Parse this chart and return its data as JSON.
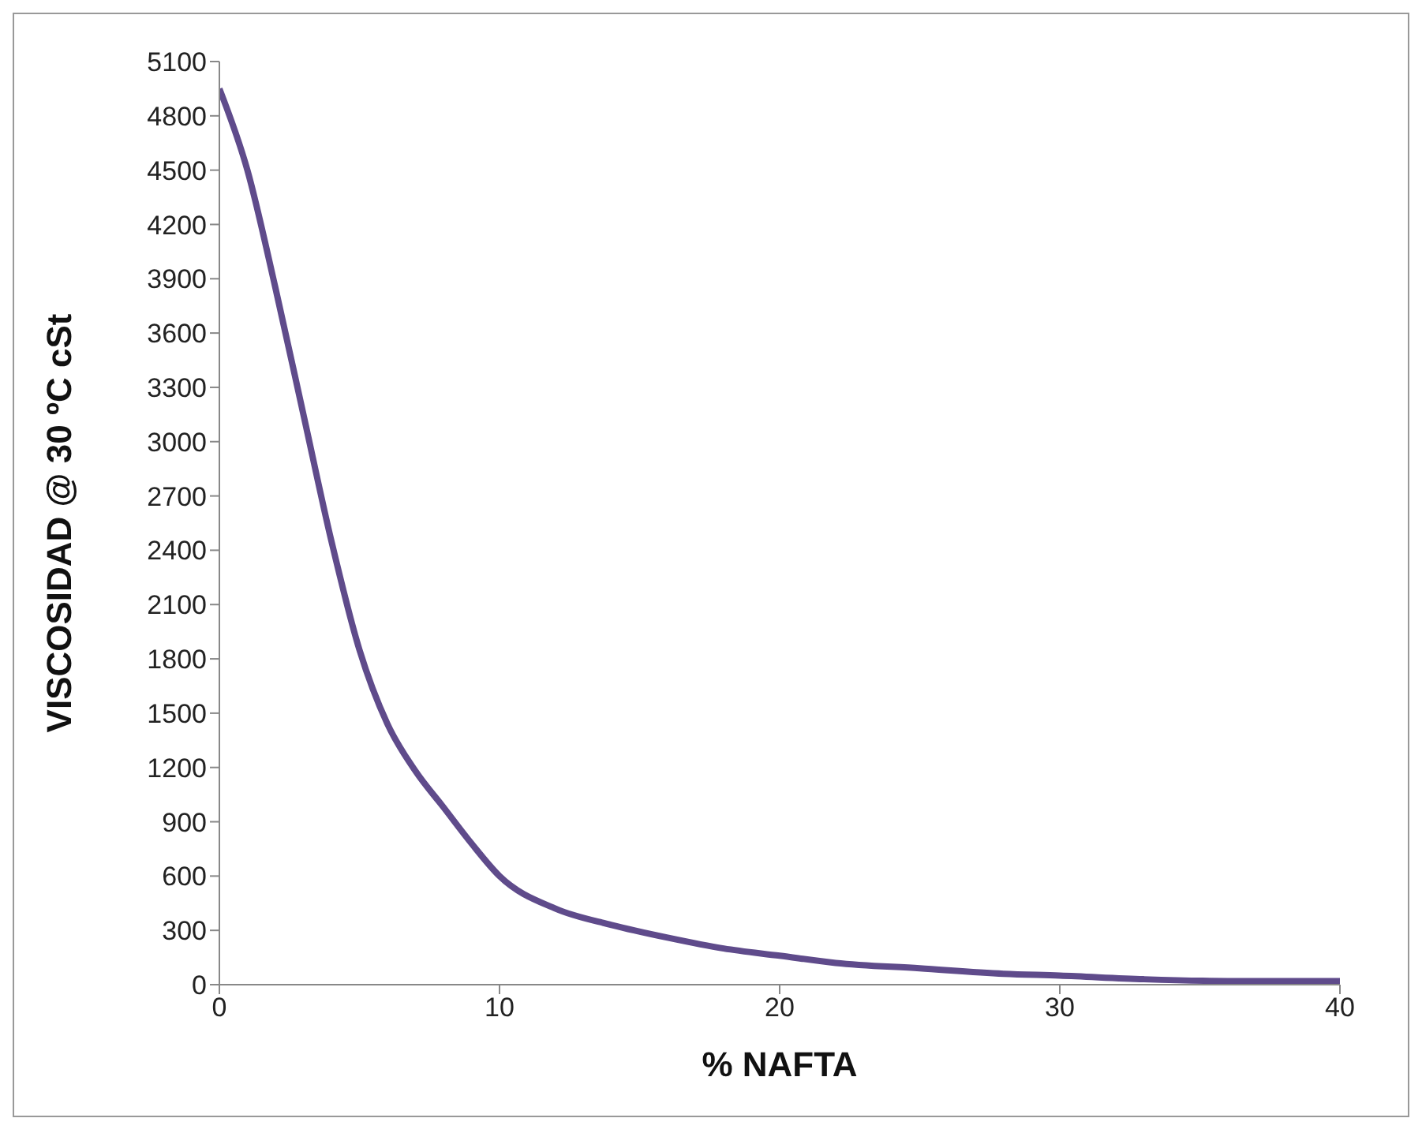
{
  "chart_data": {
    "type": "line",
    "xlabel": "% NAFTA",
    "ylabel": "VISCOSIDAD @ 30 ºC  cSt",
    "x": [
      0,
      1,
      2,
      3,
      4,
      5,
      6,
      7,
      8,
      9,
      10,
      12,
      14,
      16,
      18,
      20,
      22,
      25,
      28,
      30,
      33,
      36,
      40
    ],
    "series": [
      {
        "color": "#5f4b8b",
        "values": [
          4950,
          4500,
          3850,
          3150,
          2450,
          1850,
          1440,
          1180,
          980,
          780,
          600,
          420,
          330,
          260,
          200,
          160,
          120,
          90,
          60,
          50,
          30,
          20,
          20
        ]
      }
    ],
    "xlim": [
      0,
      40
    ],
    "xticks": [
      0,
      10,
      20,
      30,
      40
    ],
    "ylim": [
      0,
      5100
    ],
    "yticks": [
      0,
      300,
      600,
      900,
      1200,
      1500,
      1800,
      2100,
      2400,
      2700,
      3000,
      3300,
      3600,
      3900,
      4200,
      4500,
      4800,
      5100
    ],
    "grid": false,
    "legend": false,
    "marker": "none",
    "line_style": "solid"
  }
}
